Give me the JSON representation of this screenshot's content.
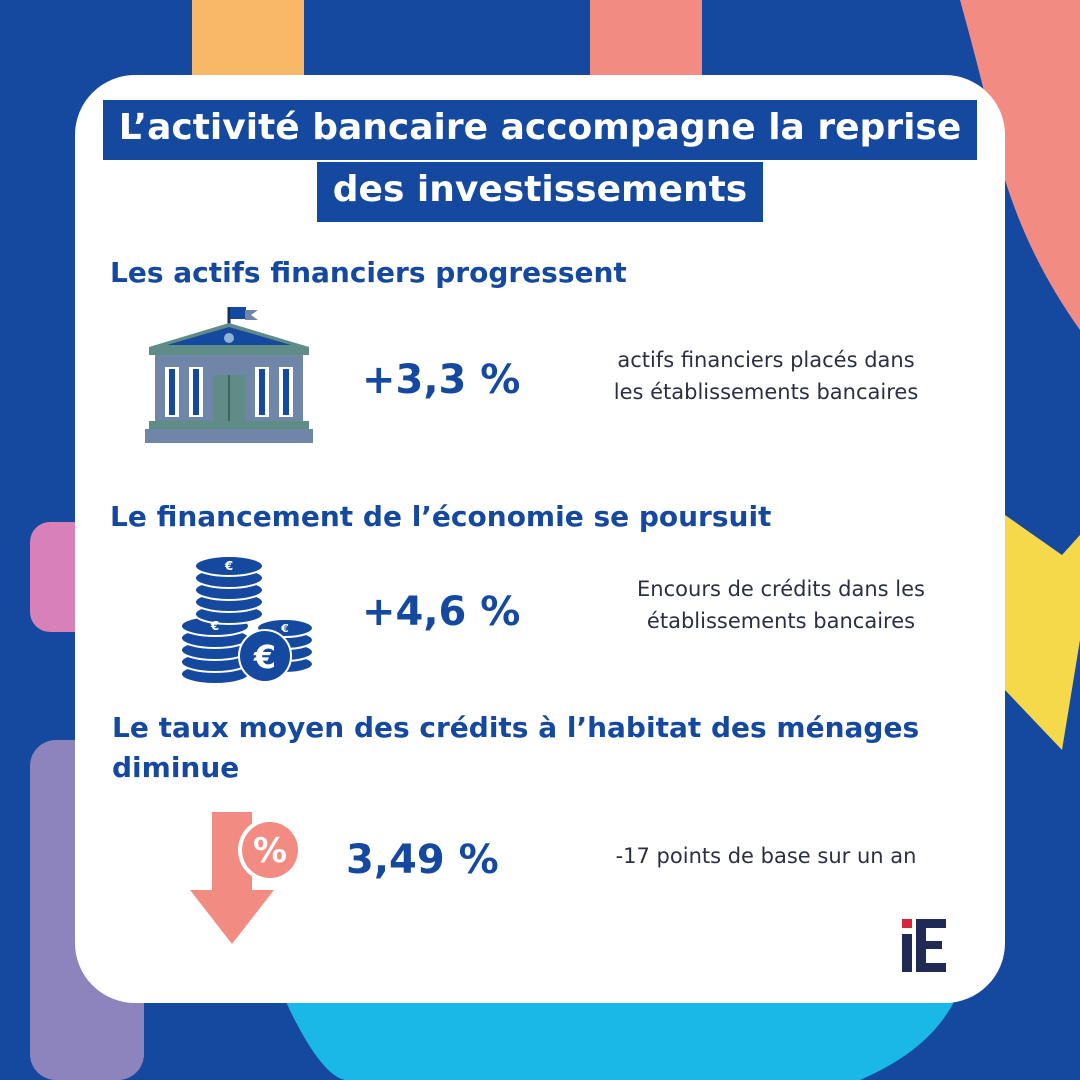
{
  "title": {
    "line1": "L’activité bancaire accompagne la reprise",
    "line2": "des investissements"
  },
  "sections": [
    {
      "heading": "Les actifs financiers progressent",
      "value": "+3,3 %",
      "description_line1": "actifs financiers placés dans",
      "description_line2": "les établissements bancaires",
      "icon": "bank-building-icon"
    },
    {
      "heading": "Le financement de l’économie se poursuit",
      "value": "+4,6 %",
      "description_line1": "Encours de crédits dans les",
      "description_line2": "établissements bancaires",
      "icon": "euro-coins-icon"
    },
    {
      "heading_line1": "Le taux moyen des crédits à l’habitat des ménages",
      "heading_line2": "diminue",
      "value": "3,49 %",
      "description_line1": "-17 points de base sur un an",
      "icon": "percent-down-arrow-icon"
    }
  ],
  "logo": {
    "letter_i": "i",
    "letter_e": "E"
  },
  "colors": {
    "background": "#1549a0",
    "card": "#ffffff",
    "accent_blue": "#1549a0",
    "salmon": "#f28b82",
    "yellow": "#f5d94a",
    "cyan": "#1ab8e6",
    "orange": "#f8b868",
    "pink": "#d880b8",
    "lavender": "#8e84bd",
    "logo_red": "#d6263a",
    "logo_navy": "#1f2a55"
  }
}
